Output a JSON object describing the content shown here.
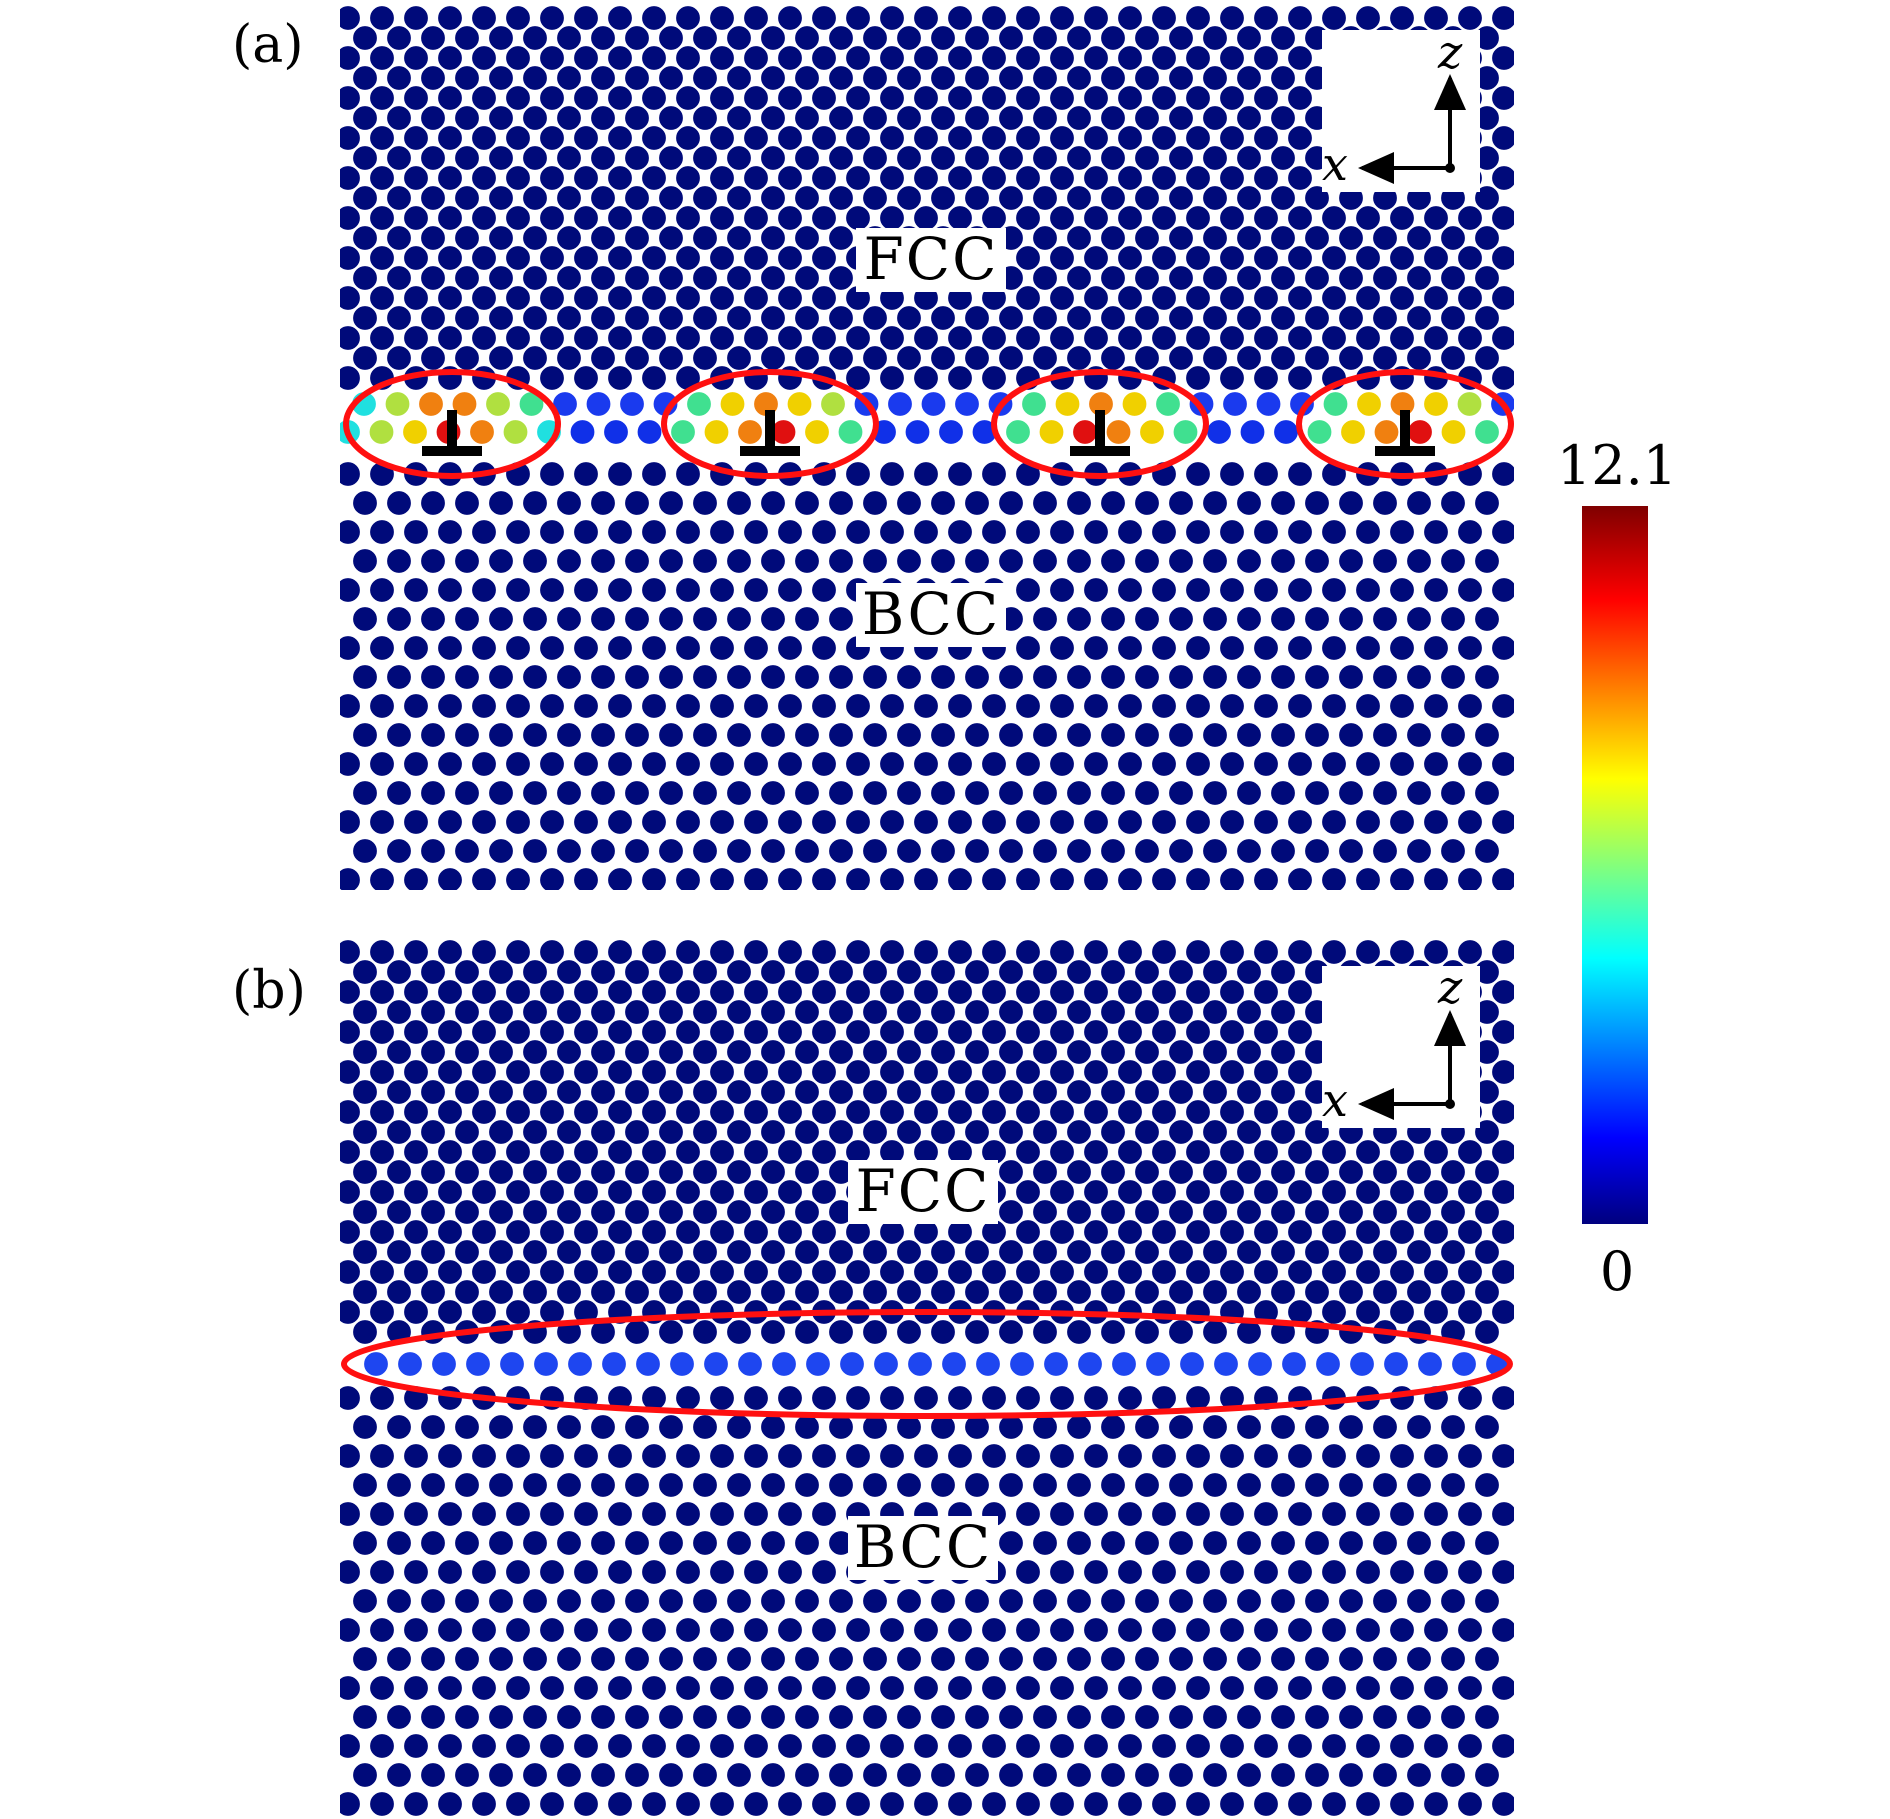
{
  "panels": [
    {
      "id": "a",
      "label": "(a)",
      "phase_top": "FCC",
      "phase_bottom": "BCC",
      "axes": {
        "horizontal": "x",
        "vertical": "z"
      },
      "interface": "misfit dislocations",
      "dislocation_symbol": "⊥",
      "dislocation_count": 4
    },
    {
      "id": "b",
      "label": "(b)",
      "phase_top": "FCC",
      "phase_bottom": "BCC",
      "axes": {
        "horizontal": "x",
        "vertical": "z"
      },
      "interface": "coherent"
    }
  ],
  "colorbar": {
    "max_label": "12.1",
    "min_label": "0",
    "max": 12.1,
    "min": 0,
    "colormap": "jet",
    "colors": [
      "#00007f",
      "#0000ff",
      "#00ffff",
      "#ffff00",
      "#ff0000",
      "#7f0000"
    ]
  },
  "colors": {
    "atom_bulk": "#000a7a",
    "ellipse": "#ff1010",
    "background": "#ffffff"
  }
}
